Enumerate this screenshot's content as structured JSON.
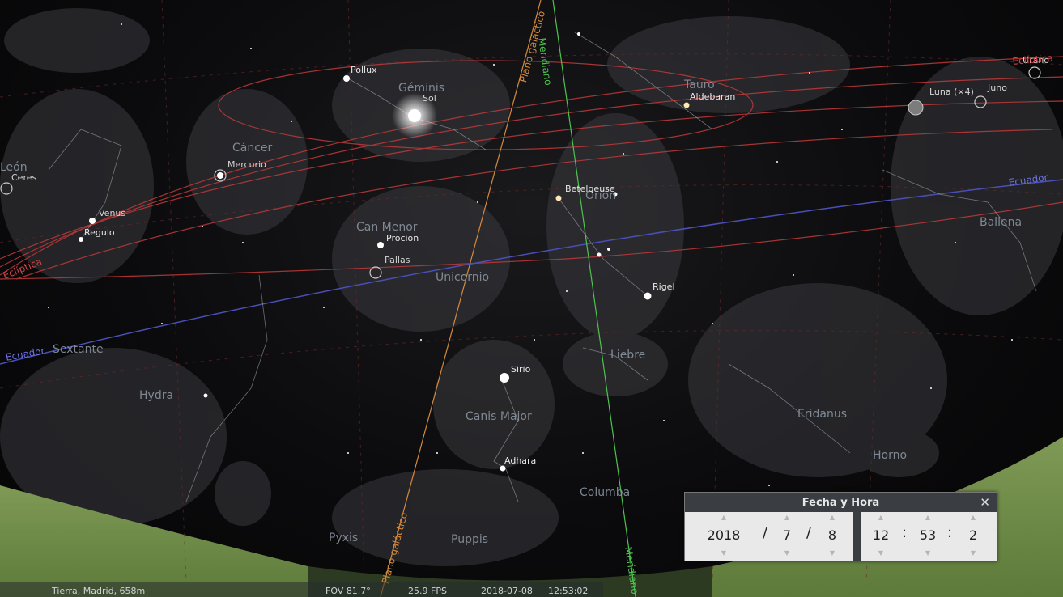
{
  "constellations": [
    "Géminis",
    "Tauro",
    "Cáncer",
    "Can Menor",
    "Unicornio",
    "Orión",
    "Ballena",
    "Sextante",
    "Hydra",
    "Liebre",
    "Canis Major",
    "Eridanus",
    "Horno",
    "Columba",
    "Pyxis",
    "Puppis"
  ],
  "stars": [
    "Pollux",
    "Aldebaran",
    "Betelgeuse",
    "Procion",
    "Rigel",
    "Sirio",
    "Adhara",
    "Regulo"
  ],
  "planets": [
    "Sol",
    "Mercurio",
    "Venus",
    "Ceres",
    "Pallas",
    "Luna (×4)",
    "Juno",
    "Urano"
  ],
  "lines": {
    "meridiano": "Meridiano",
    "plano_galactico": "Plano galáctico",
    "ecuador": "Ecuador",
    "ecliptica": "Eclíptica"
  },
  "clipped": {
    "leon": "León",
    "ecliptica_right": "Eclíptica"
  },
  "colors": {
    "ecliptic": "#c03a3a",
    "equator": "#4a4fb8",
    "meridian": "#4fc24f",
    "galactic": "#d48a3c"
  },
  "dialog": {
    "title": "Fecha y Hora",
    "close_icon": "close-icon",
    "year": "2018",
    "month": "7",
    "day": "8",
    "hour": "12",
    "minute": "53",
    "second": "2",
    "date_sep": "/",
    "time_sep": ":"
  },
  "status": {
    "location": "Tierra, Madrid, 658m",
    "fov": "FOV 81.7°",
    "fps": "25.9 FPS",
    "date": "2018-07-08",
    "time": "12:53:02"
  }
}
